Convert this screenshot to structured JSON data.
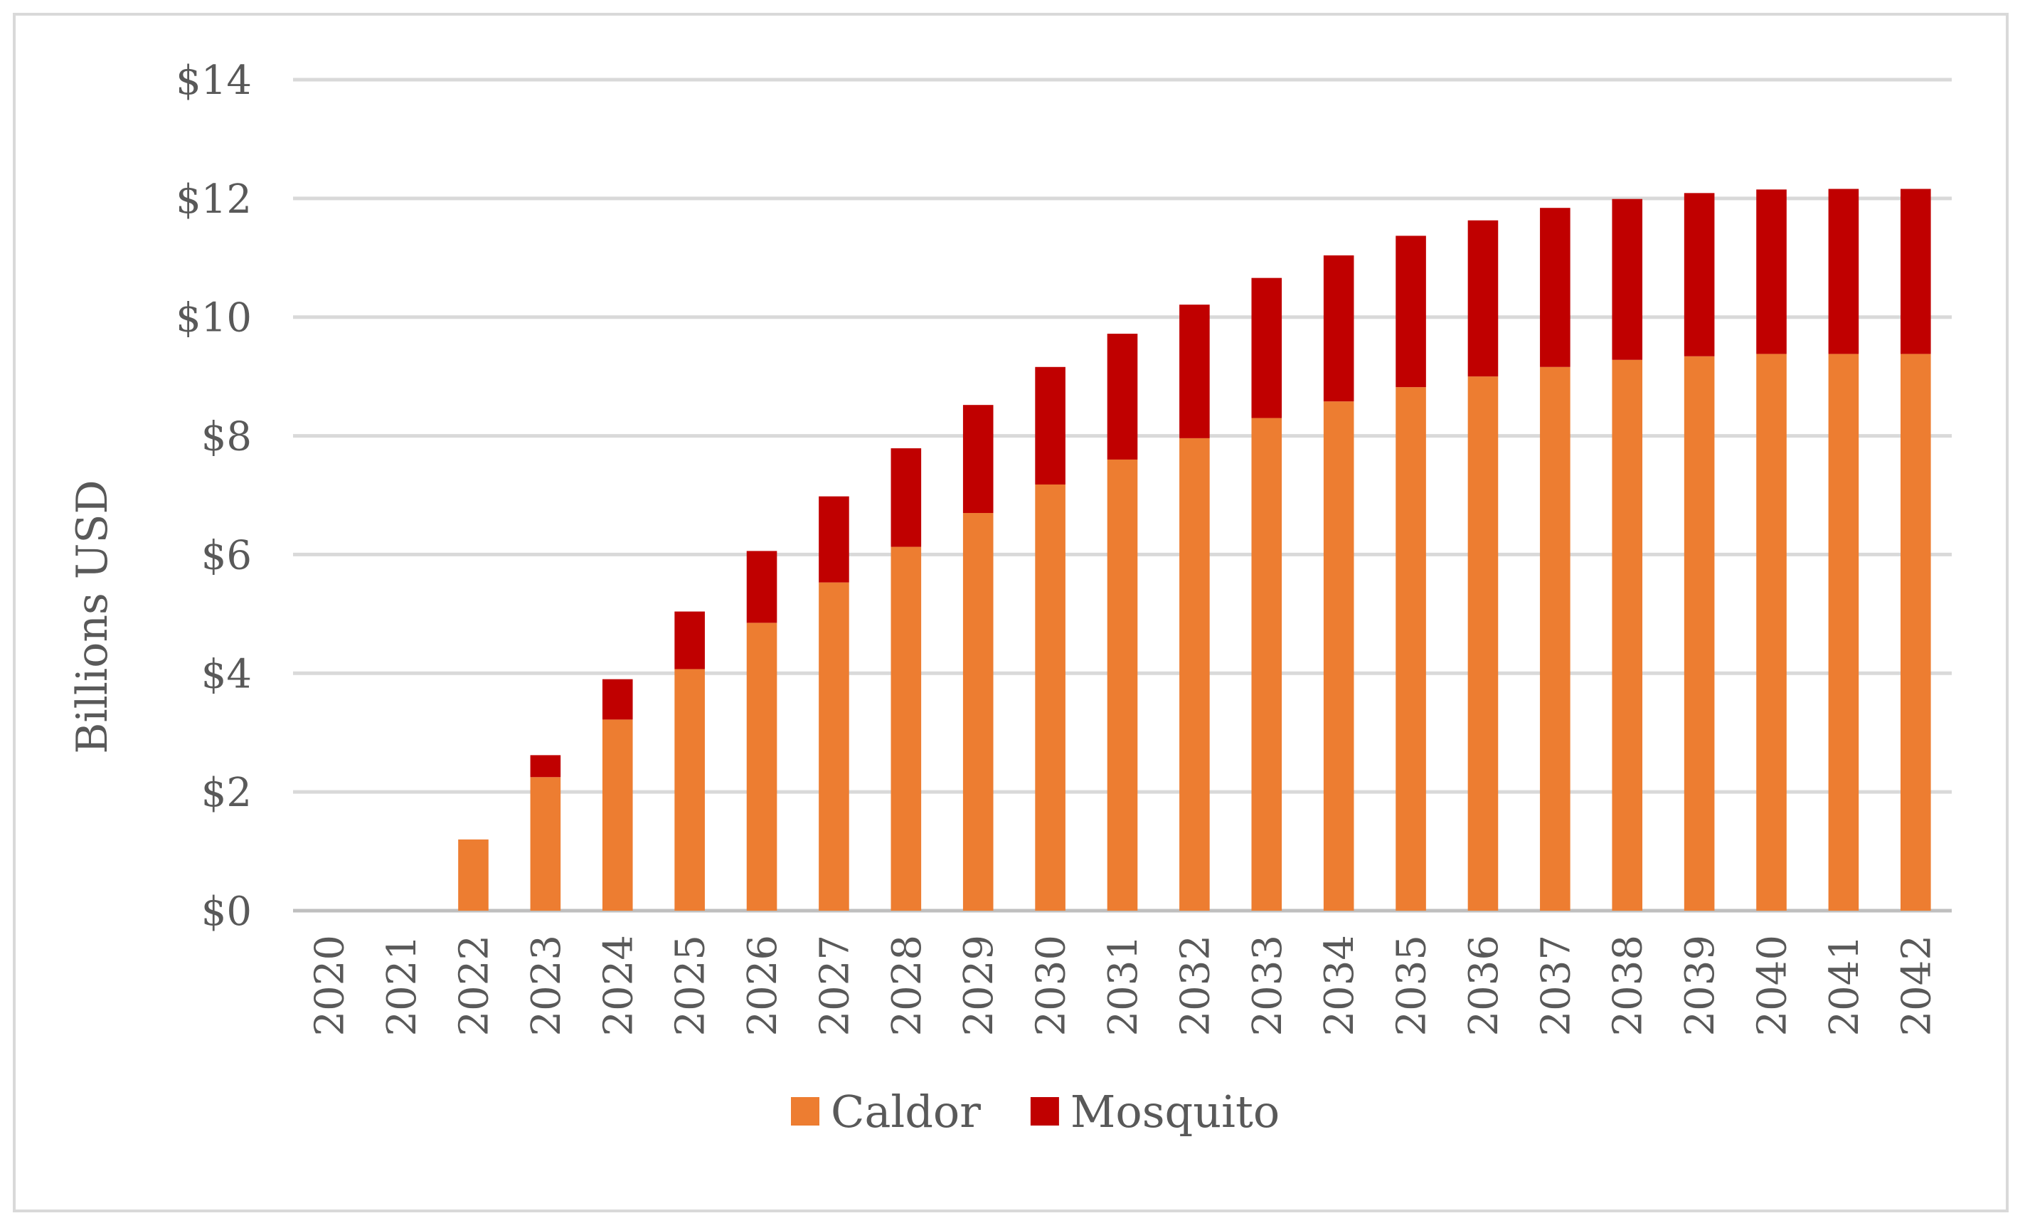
{
  "chart_data": {
    "type": "bar",
    "stacked": true,
    "title": "",
    "xlabel": "",
    "ylabel": "Billions USD",
    "ylim": [
      0,
      14
    ],
    "ytick_step": 2,
    "ytick_prefix": "$",
    "grid": "horizontal",
    "legend": "bottom-center",
    "categories": [
      "2020",
      "2021",
      "2022",
      "2023",
      "2024",
      "2025",
      "2026",
      "2027",
      "2028",
      "2029",
      "2030",
      "2031",
      "2032",
      "2033",
      "2034",
      "2035",
      "2036",
      "2037",
      "2038",
      "2039",
      "2040",
      "2041",
      "2042"
    ],
    "series": [
      {
        "name": "Caldor",
        "color": "#ed7d31",
        "values": [
          0,
          0,
          1.2,
          2.25,
          3.22,
          4.07,
          4.85,
          5.53,
          6.13,
          6.7,
          7.18,
          7.6,
          7.96,
          8.3,
          8.58,
          8.82,
          9.0,
          9.16,
          9.28,
          9.34,
          9.38,
          9.38,
          9.38
        ]
      },
      {
        "name": "Mosquito",
        "color": "#c00000",
        "values": [
          0,
          0,
          0,
          0.37,
          0.68,
          0.97,
          1.21,
          1.45,
          1.66,
          1.82,
          1.98,
          2.12,
          2.25,
          2.36,
          2.46,
          2.55,
          2.63,
          2.68,
          2.71,
          2.75,
          2.77,
          2.78,
          2.78
        ]
      }
    ]
  }
}
